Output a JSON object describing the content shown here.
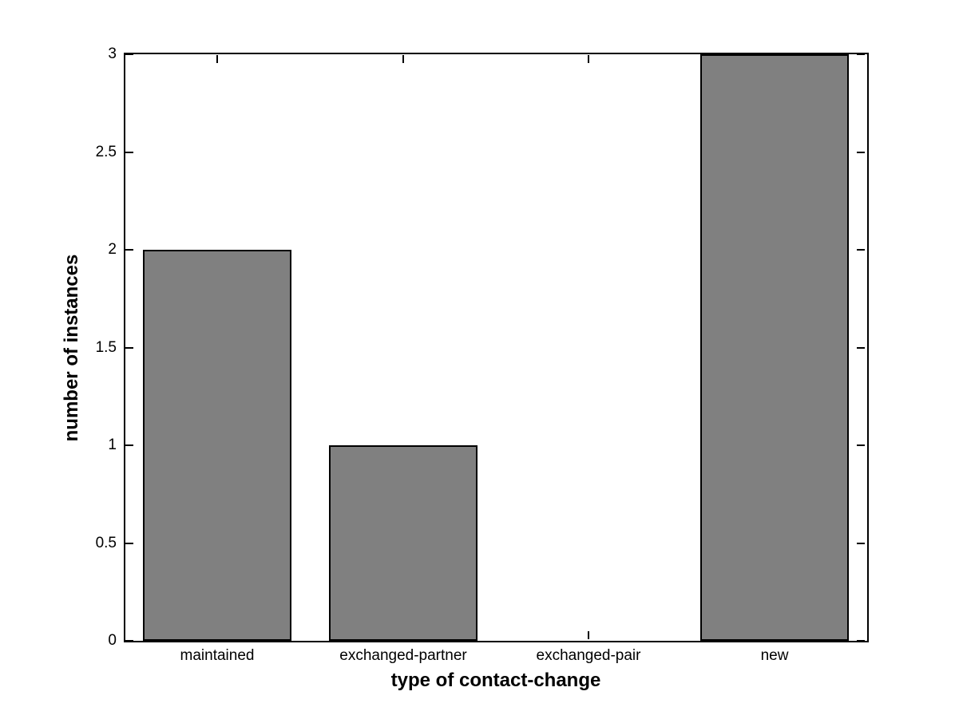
{
  "chart_data": {
    "type": "bar",
    "title": "",
    "categories": [
      "maintained",
      "exchanged-partner",
      "exchanged-pair",
      "new"
    ],
    "values": [
      2,
      1,
      0,
      3
    ],
    "xlabel": "type of contact-change",
    "ylabel": "number of instances",
    "ylim": [
      0,
      3
    ],
    "yticks": [
      0,
      0.5,
      1,
      1.5,
      2,
      2.5,
      3
    ],
    "ytick_labels": [
      "0",
      "0.5",
      "1",
      "1.5",
      "2",
      "2.5",
      "3"
    ],
    "bar_color": "#808080",
    "bar_edge_color": "#000000",
    "axis_color": "#000000",
    "background_color": "#ffffff",
    "grid": false,
    "legend_position": "none",
    "bar_width_fraction": 0.8,
    "tick_direction": "in",
    "box": true
  }
}
